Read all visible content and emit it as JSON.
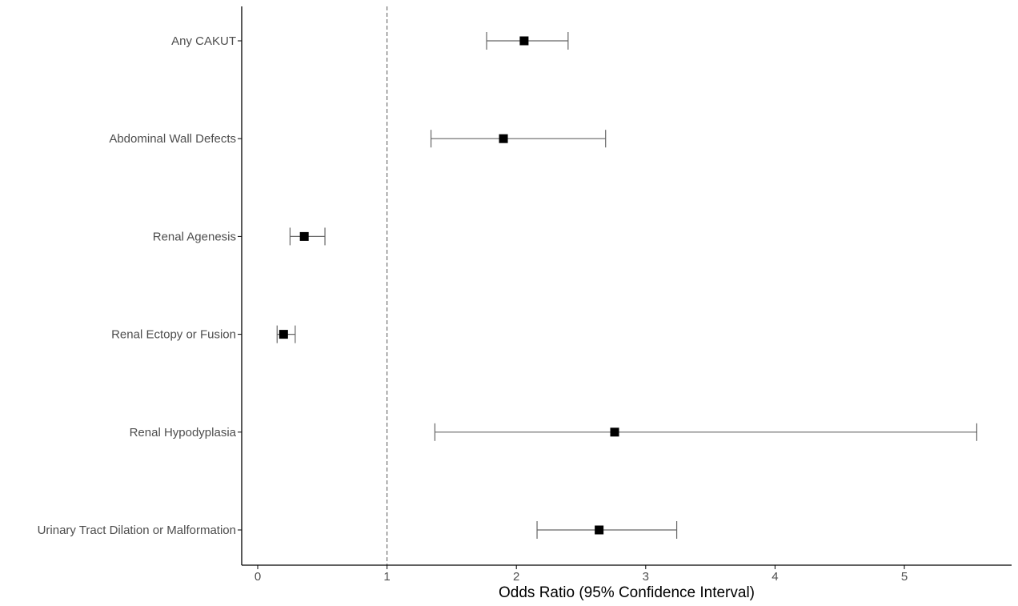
{
  "chart_data": {
    "type": "forest",
    "title": "",
    "xlabel": "Odds Ratio (95% Confidence Interval)",
    "ylabel": "",
    "xlim": [
      -0.12,
      5.8
    ],
    "xticks": [
      0,
      1,
      2,
      3,
      4,
      5
    ],
    "xtick_labels": [
      "0",
      "1",
      "2",
      "3",
      "4",
      "5"
    ],
    "reference_line": 1,
    "grid": false,
    "legend": "none",
    "categories": [
      "Any CAKUT",
      "Abdominal Wall Defects",
      "Renal Agenesis",
      "Renal Ectopy or Fusion",
      "Renal Hypodyplasia",
      "Urinary Tract Dilation or Malformation"
    ],
    "series": [
      {
        "estimate": [
          2.06,
          1.9,
          0.36,
          0.2,
          2.76,
          2.64
        ],
        "ci_low": [
          1.77,
          1.34,
          0.25,
          0.15,
          1.37,
          2.16
        ],
        "ci_high": [
          2.4,
          2.69,
          0.52,
          0.29,
          5.56,
          3.24
        ]
      }
    ],
    "colors": {
      "point": "#000000",
      "errorbar": "#666666",
      "reference_line": "#555555",
      "axis": "#000000",
      "label": "#4d4d4d"
    }
  }
}
